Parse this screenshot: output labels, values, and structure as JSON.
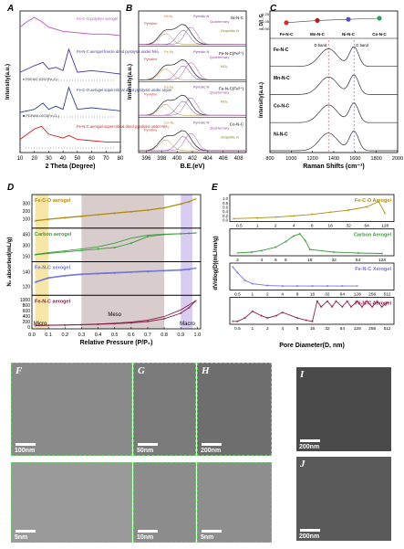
{
  "panels": {
    "A": {
      "label": "A",
      "xlabel": "2 Theta (Degree)",
      "ylabel": "Intensity(a.u.)",
      "xticks": [
        "10",
        "20",
        "30",
        "40",
        "50",
        "60",
        "70",
        "80"
      ],
      "traces": [
        {
          "name": "Fe-C-O polymer aerogel",
          "color": "#c050c0"
        },
        {
          "name": "Fe-N-C aerogel freeze dried pyrolysis under NH₃",
          "color": "#5030a0"
        },
        {
          "name": "Fe-C-O aerogel supercritical dried pyrolysis under argon",
          "color": "#304090"
        },
        {
          "name": "Fe-N-C aerogel supercritical dried pyrolysis under NH₃",
          "color": "#d02020"
        }
      ],
      "ref1": "PDF#07-0297(Fe₃C)",
      "ref2": "PDF#99-0073(Fe₂O₃)",
      "ref_symbols": [
        "♦",
        "■"
      ]
    },
    "B": {
      "label": "B",
      "xlabel": "B.E.(eV)",
      "ylabel": "Intensity(a.u.)",
      "xticks": [
        "396",
        "398",
        "400",
        "402",
        "404",
        "406",
        "408"
      ],
      "rows": [
        {
          "sample": "Ni-N-C",
          "peaks": [
            "Ni-Nₓ",
            "Pyrrolic N",
            "Quarternary",
            "Pyridine",
            "Graphitic N"
          ]
        },
        {
          "sample": "Fe-N-C(Fe³⁺)",
          "peaks": [
            "Fe-Nₓ",
            "Pyrrolic N",
            "Quarternary",
            "Pyridine",
            "NOₓ"
          ]
        },
        {
          "sample": "Fe-N-C(Fe²⁺)",
          "peaks": [
            "Fe-Nₓ",
            "Pyrrolic N",
            "Quarternary",
            "Pyridine",
            "NOₓ"
          ]
        },
        {
          "sample": "Co-N-C",
          "peaks": [
            "Co-Nₓ",
            "Pyrrolic N",
            "Quarternary",
            "Pyridine",
            "Graphitic N"
          ]
        }
      ]
    },
    "C": {
      "label": "C",
      "xlabel": "Raman Shifts (cm⁻¹)",
      "ylabel": "Intensity(a.u.)",
      "ratio_label": "I_D/I_G",
      "ratio_ticks": [
        "1.20",
        "1.05",
        "0.90"
      ],
      "ratio_values": [
        1.02,
        1.06,
        1.08,
        1.1
      ],
      "categories": [
        "Fe-N-C",
        "Mn-N-C",
        "Ni-N-C",
        "Co-N-C"
      ],
      "category_colors": [
        "#d03030",
        "#b02020",
        "#5050c0",
        "#30a060"
      ],
      "d_band": "D band",
      "g_band": "G band",
      "xticks": [
        "800",
        "1000",
        "1200",
        "1400",
        "1600",
        "1800",
        "2000"
      ],
      "spectra": [
        "Fe-N-C",
        "Mn-N-C",
        "Co-N-C",
        "Ni-N-C"
      ]
    },
    "D": {
      "label": "D",
      "xlabel": "Relative Pressure (P/P₀)",
      "ylabel": "N₂ absorbed(mL/g)",
      "xticks": [
        "0.0",
        "0.1",
        "0.2",
        "0.3",
        "0.4",
        "0.5",
        "0.6",
        "0.7",
        "0.8",
        "0.9",
        "1.0"
      ],
      "region_micro": "Micro",
      "region_meso": "Meso",
      "region_macro": "Macro",
      "subplots": [
        {
          "name": "Fe-C-O aerogel",
          "color": "#b08a10",
          "yticks": [
            "100",
            "200",
            "300"
          ],
          "ylim": [
            0,
            380
          ],
          "x": [
            0.02,
            0.1,
            0.2,
            0.3,
            0.4,
            0.5,
            0.6,
            0.7,
            0.8,
            0.9,
            0.95,
            0.99
          ],
          "adsorption": [
            70,
            90,
            110,
            130,
            150,
            170,
            190,
            210,
            240,
            290,
            320,
            360
          ],
          "desorption": [
            75,
            95,
            115,
            135,
            155,
            175,
            195,
            215,
            245,
            295,
            325,
            360
          ]
        },
        {
          "name": "Carbon aerogel",
          "color": "#3c9a3c",
          "yticks": [
            "150",
            "300",
            "450"
          ],
          "ylim": [
            100,
            500
          ],
          "x": [
            0.02,
            0.1,
            0.2,
            0.3,
            0.4,
            0.5,
            0.6,
            0.7,
            0.8,
            0.9,
            0.95,
            0.99
          ],
          "adsorption": [
            170,
            190,
            210,
            230,
            250,
            270,
            330,
            420,
            450,
            460,
            465,
            470
          ],
          "desorption": [
            175,
            200,
            225,
            250,
            280,
            330,
            400,
            440,
            455,
            462,
            467,
            470
          ]
        },
        {
          "name": "Fe-N-C xerogel",
          "color": "#6f74d8",
          "yticks": [
            "120",
            "140"
          ],
          "ylim": [
            110,
            150
          ],
          "x": [
            0.02,
            0.1,
            0.2,
            0.3,
            0.4,
            0.5,
            0.6,
            0.7,
            0.8,
            0.9,
            0.95,
            0.99
          ],
          "adsorption": [
            125,
            131,
            134,
            136,
            137,
            138,
            139,
            140,
            141,
            142,
            143,
            145
          ],
          "desorption": [
            126,
            132,
            135,
            137,
            138,
            139,
            140,
            141,
            142,
            143,
            144,
            145
          ]
        },
        {
          "name": "Fe-N-C aerogel",
          "color": "#8a1f4c",
          "yticks": [
            "0",
            "200",
            "400",
            "600",
            "800",
            "1000"
          ],
          "ylim": [
            0,
            1050
          ],
          "x": [
            0.02,
            0.1,
            0.2,
            0.3,
            0.4,
            0.5,
            0.6,
            0.7,
            0.8,
            0.9,
            0.95,
            0.99
          ],
          "adsorption": [
            50,
            60,
            70,
            80,
            100,
            120,
            150,
            200,
            300,
            500,
            700,
            950
          ],
          "desorption": [
            55,
            65,
            75,
            90,
            110,
            140,
            180,
            250,
            380,
            620,
            800,
            950
          ]
        }
      ]
    },
    "E": {
      "label": "E",
      "xlabel": "Pore Diameter(D, nm)",
      "ylabel": "dV/dlog(D)(mL/nm/g)",
      "subplots": [
        {
          "name": "Fe-C-O Aerogel",
          "color": "#b08a10",
          "yticks": [
            "0.0",
            "0.2",
            "0.4",
            "0.6",
            "0.8",
            "1.0"
          ],
          "ylim": [
            0,
            1.05
          ],
          "xticks": [
            "0.5",
            "1",
            "2",
            "4",
            "8",
            "16",
            "32",
            "64",
            "128"
          ],
          "xrange": [
            0.35,
            180
          ],
          "x": [
            0.4,
            1,
            2,
            4,
            8,
            16,
            32,
            64,
            100,
            128
          ],
          "y": [
            0.05,
            0.08,
            0.12,
            0.18,
            0.25,
            0.35,
            0.45,
            0.6,
            0.85,
            0.3
          ]
        },
        {
          "name": "Carbon Aerogel",
          "color": "#3c9a3c",
          "yticks": [],
          "ylim": [
            0,
            1
          ],
          "xticks": [
            "2",
            "4",
            "6",
            "8",
            "16",
            "32",
            "64",
            "128"
          ],
          "xrange": [
            1.6,
            180
          ],
          "x": [
            2,
            3,
            4,
            6,
            8,
            10,
            12,
            14,
            16,
            32,
            64,
            128
          ],
          "y": [
            0.05,
            0.08,
            0.15,
            0.3,
            0.55,
            0.8,
            0.9,
            0.6,
            0.2,
            0.08,
            0.04,
            0.02
          ]
        },
        {
          "name": "Fe-N-C Xerogel",
          "color": "#6f74d8",
          "yticks": [],
          "ylim": [
            0,
            1
          ],
          "xticks": [
            "0.5",
            "1",
            "2",
            "4",
            "8",
            "16",
            "32",
            "64",
            "128",
            "256",
            "512"
          ],
          "xrange": [
            0.35,
            700
          ],
          "x": [
            0.4,
            0.5,
            0.7,
            1,
            2,
            4,
            8,
            16,
            32,
            64,
            128
          ],
          "y": [
            0.95,
            0.7,
            0.35,
            0.2,
            0.12,
            0.1,
            0.1,
            0.1,
            0.1,
            0.1,
            0.1
          ]
        },
        {
          "name": "Fe-N-C Aerogel",
          "color": "#8a1f4c",
          "yticks": [],
          "ylim": [
            0,
            1
          ],
          "xticks": [
            "0.5",
            "1",
            "2",
            "4",
            "8",
            "16",
            "32",
            "64",
            "128",
            "256",
            "512"
          ],
          "xrange": [
            0.35,
            700
          ],
          "x": [
            0.4,
            0.5,
            0.7,
            1,
            1.5,
            2,
            3,
            4,
            8,
            12,
            16,
            20,
            24,
            32,
            40,
            48,
            64,
            80,
            96,
            128,
            160,
            200,
            256,
            320,
            400,
            512
          ],
          "y": [
            0.05,
            0.05,
            0.2,
            0.5,
            0.3,
            0.2,
            0.3,
            0.45,
            0.2,
            0.1,
            0.05,
            0.95,
            0.7,
            0.95,
            0.7,
            0.95,
            0.7,
            0.95,
            0.7,
            0.95,
            0.7,
            0.95,
            0.7,
            0.95,
            0.7,
            0.9
          ]
        }
      ]
    },
    "F": {
      "label": "F",
      "scale_top": "100nm",
      "scale_bottom": "5nm"
    },
    "G": {
      "label": "G",
      "scale_top": "50nm",
      "scale_bottom": "10nm"
    },
    "H": {
      "label": "H",
      "scale_top": "200nm",
      "scale_bottom": "5nm"
    },
    "I": {
      "label": "I",
      "scale": "200nm"
    },
    "J": {
      "label": "J",
      "scale": "200nm"
    }
  },
  "chart_data": [
    {
      "type": "line",
      "panel": "A",
      "xlabel": "2 Theta (Degree)",
      "ylabel": "Intensity(a.u.)",
      "xlim": [
        10,
        80
      ],
      "series": [
        {
          "name": "Fe-C-O polymer aerogel",
          "x": [
            10,
            15,
            20,
            25,
            30,
            40,
            50,
            60,
            70,
            80
          ],
          "values": [
            0.6,
            0.8,
            0.95,
            0.8,
            0.6,
            0.45,
            0.4,
            0.35,
            0.35,
            0.3
          ]
        },
        {
          "name": "Fe-N-C aerogel freeze dried pyrolysis under NH₃",
          "x": [
            10,
            20,
            26,
            30,
            35,
            40,
            44,
            50,
            60,
            70,
            80
          ],
          "values": [
            0.3,
            0.5,
            0.6,
            0.4,
            0.45,
            0.35,
            1.0,
            0.3,
            0.35,
            0.3,
            0.25
          ]
        },
        {
          "name": "Fe-C-O aerogel supercritical dried pyrolysis under argon",
          "x": [
            10,
            20,
            26,
            30,
            35,
            40,
            44,
            50,
            60,
            70,
            80
          ],
          "values": [
            0.2,
            0.3,
            0.5,
            0.3,
            0.4,
            0.3,
            1.0,
            0.3,
            0.35,
            0.3,
            0.25
          ]
        },
        {
          "name": "Fe-N-C aerogel supercritical dried pyrolysis under NH₃",
          "x": [
            10,
            20,
            25,
            30,
            40,
            44,
            50,
            60,
            70,
            80
          ],
          "values": [
            0.4,
            0.8,
            0.9,
            0.6,
            0.45,
            0.55,
            0.4,
            0.35,
            0.3,
            0.3
          ]
        }
      ]
    },
    {
      "type": "line",
      "panel": "C",
      "ylabel": "I_D/I_G",
      "categories": [
        "Fe-N-C",
        "Mn-N-C",
        "Ni-N-C",
        "Co-N-C"
      ],
      "values": [
        1.02,
        1.06,
        1.08,
        1.1
      ],
      "ylim": [
        0.9,
        1.2
      ]
    },
    {
      "type": "line",
      "panel": "D",
      "xlabel": "Relative Pressure (P/P₀)",
      "ylabel": "N₂ absorbed(mL/g)",
      "series": [
        "Fe-C-O aerogel",
        "Carbon aerogel",
        "Fe-N-C xerogel",
        "Fe-N-C aerogel"
      ]
    },
    {
      "type": "line",
      "panel": "E",
      "xlabel": "Pore Diameter(D, nm)",
      "ylabel": "dV/dlog(D)(mL/nm/g)",
      "series": [
        "Fe-C-O Aerogel",
        "Carbon Aerogel",
        "Fe-N-C Xerogel",
        "Fe-N-C Aerogel"
      ]
    }
  ]
}
